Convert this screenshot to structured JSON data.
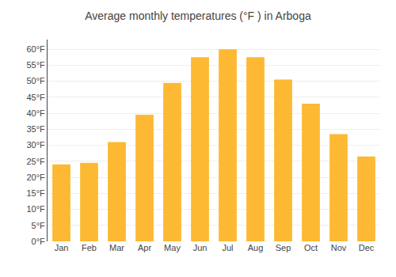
{
  "chart_data": {
    "type": "bar",
    "title": "Average monthly temperatures (°F ) in Arboga",
    "categories": [
      "Jan",
      "Feb",
      "Mar",
      "Apr",
      "May",
      "Jun",
      "Jul",
      "Aug",
      "Sep",
      "Oct",
      "Nov",
      "Dec"
    ],
    "values": [
      24.0,
      24.5,
      31.0,
      39.5,
      49.5,
      57.5,
      60.0,
      57.5,
      50.5,
      43.0,
      33.5,
      26.5
    ],
    "color": "#FDB933",
    "ylim": [
      0,
      63
    ],
    "yticks": [
      {
        "value": 0,
        "label": "0°F"
      },
      {
        "value": 5,
        "label": "5°F"
      },
      {
        "value": 10,
        "label": "10°F"
      },
      {
        "value": 15,
        "label": "15°F"
      },
      {
        "value": 20,
        "label": "20°F"
      },
      {
        "value": 25,
        "label": "25°F"
      },
      {
        "value": 30,
        "label": "30°F"
      },
      {
        "value": 35,
        "label": "35°F"
      },
      {
        "value": 40,
        "label": "40°F"
      },
      {
        "value": 45,
        "label": "45°F"
      },
      {
        "value": 50,
        "label": "50°F"
      },
      {
        "value": 55,
        "label": "55°F"
      },
      {
        "value": 60,
        "label": "60°F"
      }
    ],
    "grid": true
  }
}
